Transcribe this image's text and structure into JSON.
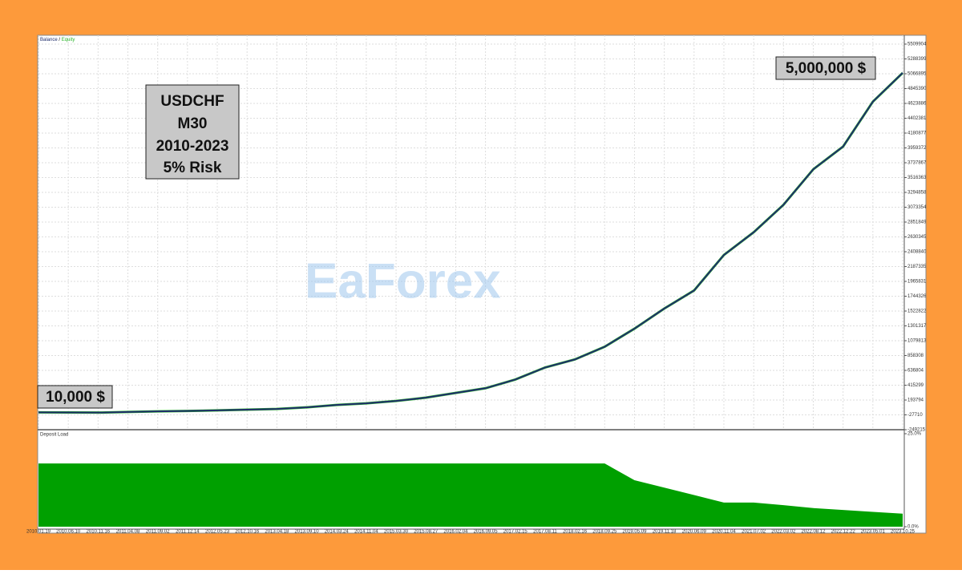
{
  "chart_data": [
    {
      "type": "line",
      "title": "Balance / Equity",
      "categories": [
        "2010.01.19",
        "2010.06.10",
        "2010.11.16",
        "2011.04.08",
        "2011.09.02",
        "2011.12.14",
        "2012.05.23",
        "2012.10.16",
        "2013.04.18",
        "2013.09.10",
        "2014.03.24",
        "2014.11.04",
        "2015.03.30",
        "2015.08.27",
        "2016.02.04",
        "2016.09.05",
        "2017.02.15",
        "2017.08.11",
        "2018.02.16",
        "2018.09.25",
        "2019.05.09",
        "2019.11.18",
        "2020.06.09",
        "2020.11.04",
        "2021.07.02",
        "2022.03.02",
        "2022.08.12",
        "2022.12.22",
        "2023.05.01",
        "2023.10.25"
      ],
      "series": [
        {
          "name": "Equity",
          "color": "#2bb52b",
          "values": [
            10000,
            8000,
            6000,
            15000,
            25000,
            30000,
            40000,
            50000,
            60000,
            85000,
            120000,
            145000,
            180000,
            230000,
            300000,
            370000,
            500000,
            680000,
            800000,
            990000,
            1260000,
            1560000,
            1830000,
            2360000,
            2700000,
            3110000,
            3640000,
            3980000,
            4650000,
            5080000
          ]
        },
        {
          "name": "Balance",
          "color": "#1f2d6b",
          "values": [
            10000,
            8000,
            6000,
            15000,
            25000,
            30000,
            40000,
            50000,
            60000,
            85000,
            120000,
            145000,
            180000,
            230000,
            300000,
            370000,
            500000,
            680000,
            800000,
            990000,
            1260000,
            1560000,
            1830000,
            2360000,
            2700000,
            3110000,
            3640000,
            3980000,
            4650000,
            5080000
          ]
        }
      ],
      "ylim": [
        -249215,
        5509904
      ],
      "yticks": [
        -249215,
        -27710,
        193794,
        415299,
        636804,
        858308,
        1079813,
        1301317,
        1522822,
        1744326,
        1965831,
        2187335,
        2408840,
        2630345,
        2851849,
        3073354,
        3294858,
        3516363,
        3737867,
        3959372,
        4180877,
        4402381,
        4623886,
        4845390,
        5066895,
        5288399,
        5509904
      ],
      "grid": true,
      "annotations": [
        "5,000,000 $",
        "10,000 $"
      ],
      "info_box": [
        "USDCHF",
        "M30",
        "2010-2023",
        "5% Risk"
      ],
      "watermark": "EaForex"
    },
    {
      "type": "area",
      "title": "Deposit Load",
      "color": "#00a000",
      "values": [
        17,
        17,
        17,
        17,
        17,
        17,
        17,
        17,
        17,
        17,
        17,
        17,
        17,
        17,
        17,
        17,
        17,
        17,
        17,
        17,
        12.5,
        10.5,
        8.5,
        6.5,
        6.5,
        5.8,
        5,
        4.5,
        4,
        3.5
      ],
      "ylim": [
        0,
        25
      ],
      "yticks": [
        {
          "value": 0,
          "label": "0.0%"
        },
        {
          "value": 25,
          "label": "25.0%"
        }
      ]
    }
  ]
}
